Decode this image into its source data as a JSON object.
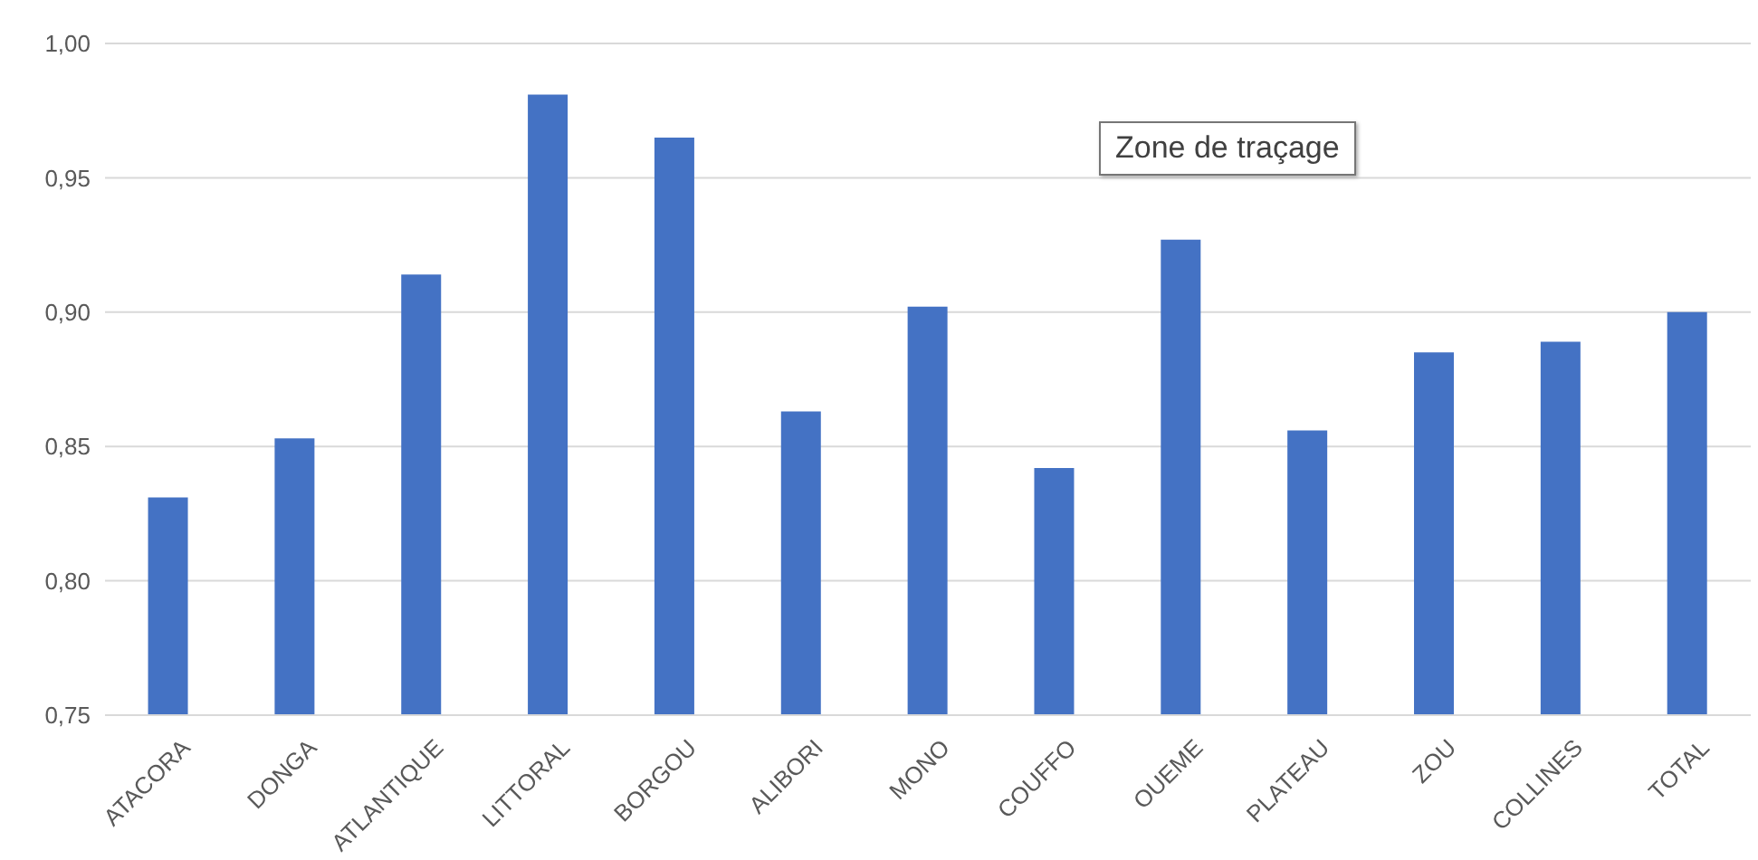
{
  "chart_data": {
    "type": "bar",
    "categories": [
      "ATACORA",
      "DONGA",
      "ATLANTIQUE",
      "LITTORAL",
      "BORGOU",
      "ALIBORI",
      "MONO",
      "COUFFO",
      "OUEME",
      "PLATEAU",
      "ZOU",
      "COLLINES",
      "TOTAL"
    ],
    "values": [
      0.831,
      0.853,
      0.914,
      0.981,
      0.965,
      0.863,
      0.902,
      0.842,
      0.927,
      0.856,
      0.885,
      0.889,
      0.9
    ],
    "color": "#4472c4",
    "ylim": [
      0.75,
      1.0
    ],
    "yticks": [
      {
        "value": 0.75,
        "label": "0,75"
      },
      {
        "value": 0.8,
        "label": "0,80"
      },
      {
        "value": 0.85,
        "label": "0,85"
      },
      {
        "value": 0.9,
        "label": "0,90"
      },
      {
        "value": 0.95,
        "label": "0,95"
      },
      {
        "value": 1.0,
        "label": "1,00"
      }
    ],
    "grid": "y",
    "annotations": [
      "Zone de traçage"
    ]
  }
}
